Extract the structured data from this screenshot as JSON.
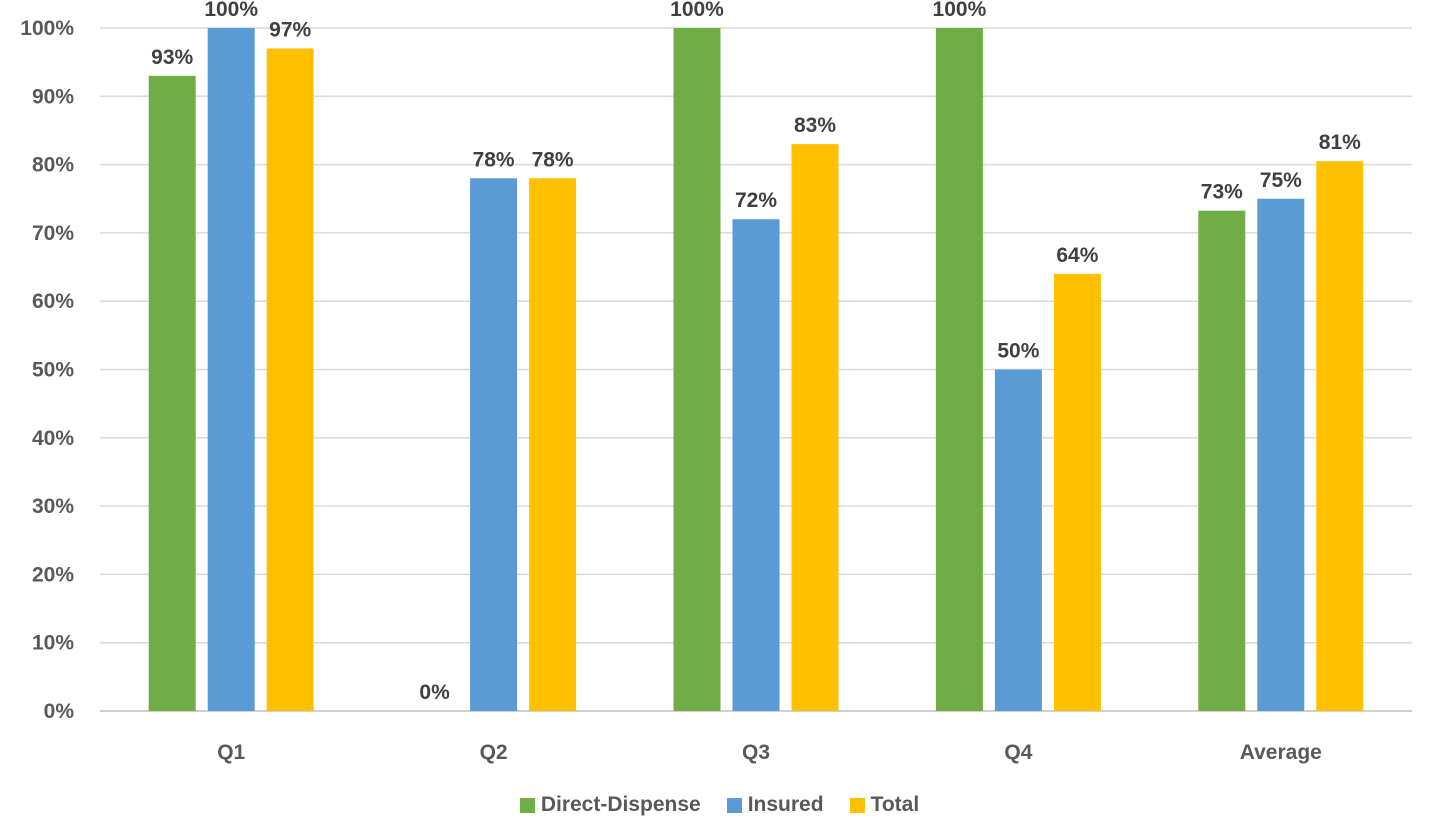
{
  "chart_data": {
    "type": "bar",
    "categories": [
      "Q1",
      "Q2",
      "Q3",
      "Q4",
      "Average"
    ],
    "series": [
      {
        "name": "Direct-Dispense",
        "color": "#70AD47",
        "values": [
          93,
          0,
          100,
          100,
          73.25
        ],
        "labels": [
          "93%",
          "0%",
          "100%",
          "100%",
          "73%"
        ]
      },
      {
        "name": "Insured",
        "color": "#5B9BD5",
        "values": [
          100,
          78,
          72,
          50,
          75
        ],
        "labels": [
          "100%",
          "78%",
          "72%",
          "50%",
          "75%"
        ]
      },
      {
        "name": "Total",
        "color": "#FFC000",
        "values": [
          97,
          78,
          83,
          64,
          80.5
        ],
        "labels": [
          "97%",
          "78%",
          "83%",
          "64%",
          "81%"
        ]
      }
    ],
    "yticks": [
      "0%",
      "10%",
      "20%",
      "30%",
      "40%",
      "50%",
      "60%",
      "70%",
      "80%",
      "90%",
      "100%"
    ],
    "ylim": [
      0,
      100
    ],
    "grid": true,
    "legend_position": "bottom",
    "title": "",
    "xlabel": "",
    "ylabel": ""
  }
}
